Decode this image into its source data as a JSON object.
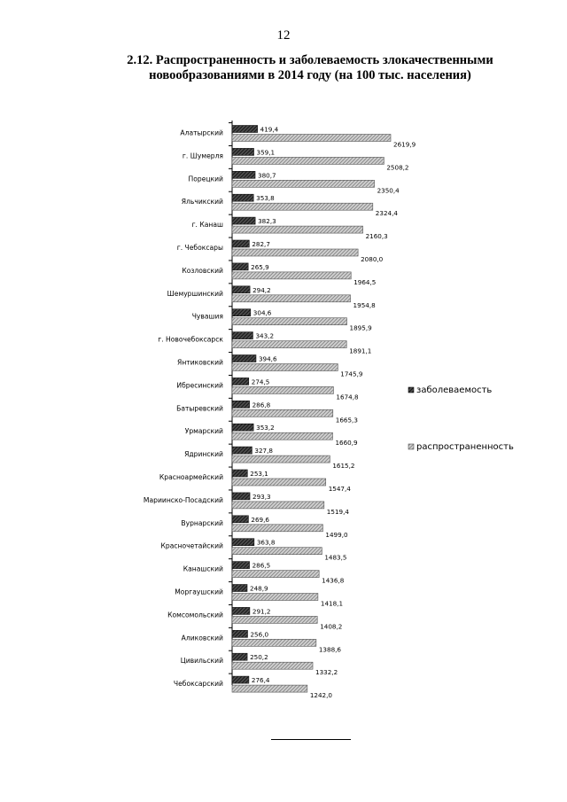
{
  "page_number": "12",
  "title_line1": "2.12. Распространенность и заболеваемость злокачественными",
  "title_line2": "новообразованиями в 2014 году (на 100 тыс. населения)",
  "chart_data": {
    "type": "bar",
    "orientation": "horizontal",
    "title": "",
    "xlabel": "",
    "ylabel": "",
    "xlim": [
      0,
      2700
    ],
    "grid": false,
    "legend_position": "right",
    "categories": [
      "Алатырский",
      "г. Шумерля",
      "Порецкий",
      "Яльчикский",
      "г. Канаш",
      "г. Чебоксары",
      "Козловский",
      "Шемуршинский",
      "Чувашия",
      "г. Новочебоксарск",
      "Янтиковский",
      "Ибресинский",
      "Батыревский",
      "Урмарский",
      "Ядринский",
      "Красноармейский",
      "Мариинско-Посадский",
      "Вурнарский",
      "Красночетайский",
      "Канашский",
      "Моргаушский",
      "Комсомольский",
      "Аликовский",
      "Цивильский",
      "Чебоксарский"
    ],
    "series": [
      {
        "name": "заболеваемость",
        "color": "#404040",
        "values": [
          419.4,
          359.1,
          380.7,
          353.8,
          382.3,
          282.7,
          265.9,
          294.2,
          304.6,
          343.2,
          394.6,
          274.5,
          286.8,
          353.2,
          327.8,
          253.1,
          293.3,
          269.6,
          363.8,
          286.5,
          248.9,
          291.2,
          256.0,
          250.2,
          276.4
        ],
        "labels": [
          "419,4",
          "359,1",
          "380,7",
          "353,8",
          "382,3",
          "282,7",
          "265,9",
          "294,2",
          "304,6",
          "343,2",
          "394,6",
          "274,5",
          "286,8",
          "353,2",
          "327,8",
          "253,1",
          "293,3",
          "269,6",
          "363,8",
          "286,5",
          "248,9",
          "291,2",
          "256,0",
          "250,2",
          "276,4"
        ]
      },
      {
        "name": "распространенность",
        "color": "#bdbdbd",
        "values": [
          2619.9,
          2508.2,
          2350.4,
          2324.4,
          2160.3,
          2080.0,
          1964.5,
          1954.8,
          1895.9,
          1891.1,
          1745.9,
          1674.8,
          1665.3,
          1660.9,
          1615.2,
          1547.4,
          1519.4,
          1499.0,
          1483.5,
          1436.8,
          1418.1,
          1408.2,
          1388.6,
          1332.2,
          1242.0
        ],
        "labels": [
          "2619,9",
          "2508,2",
          "2350,4",
          "2324,4",
          "2160,3",
          "2080,0",
          "1964,5",
          "1954,8",
          "1895,9",
          "1891,1",
          "1745,9",
          "1674,8",
          "1665,3",
          "1660,9",
          "1615,2",
          "1547,4",
          "1519,4",
          "1499,0",
          "1483,5",
          "1436,8",
          "1418,1",
          "1408,2",
          "1388,6",
          "1332,2",
          "1242,0"
        ]
      }
    ]
  }
}
